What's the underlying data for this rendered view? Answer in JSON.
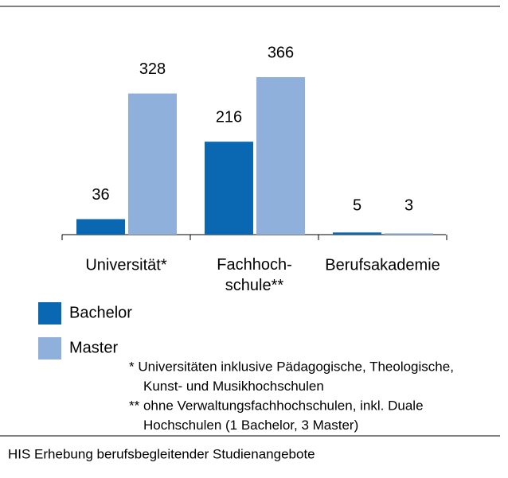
{
  "chart_data": {
    "type": "bar",
    "categories": [
      "Universität*",
      "Fachhoch-\nschule**",
      "Berufsakademie"
    ],
    "series": [
      {
        "name": "Bachelor",
        "color": "#0a68b2",
        "values": [
          36,
          216,
          5
        ]
      },
      {
        "name": "Master",
        "color": "#8eb0da",
        "values": [
          328,
          366,
          3
        ]
      }
    ],
    "notes": [
      [
        "* Universitäten inklusive Pädagogische, Theologische,",
        "Kunst- und Musikhochschulen"
      ],
      [
        "** ohne Verwaltungsfachhochschulen, inkl. Duale",
        "Hochschulen  (1 Bachelor, 3 Master)"
      ]
    ],
    "source": "HIS Erhebung berufsbegleitender Studienangebote"
  }
}
